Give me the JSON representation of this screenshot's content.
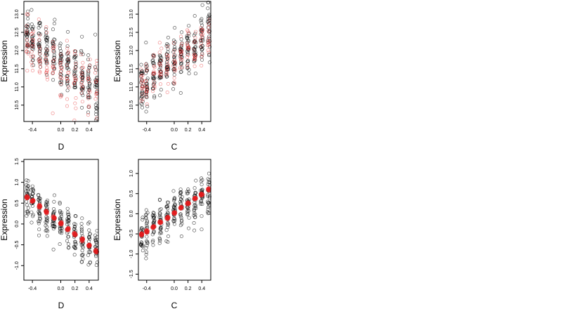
{
  "chart_data": [
    {
      "type": "scatter",
      "xlabel": "D",
      "ylabel": "Expression",
      "xlim": [
        -0.52,
        0.53
      ],
      "ylim": [
        10.05,
        13.35
      ],
      "x_ticks": [
        -0.4,
        0.0,
        0.2,
        0.4
      ],
      "x_tick_labels": [
        "-0.4",
        "0.0",
        "0.2",
        "0.4"
      ],
      "y_ticks": [
        10.5,
        11.0,
        11.5,
        12.0,
        12.5,
        13.0
      ],
      "y_tick_labels": [
        "10.5",
        "11.0",
        "11.5",
        "12.0",
        "12.5",
        "13.0"
      ],
      "x_levels": [
        -0.47,
        -0.4,
        -0.3,
        -0.2,
        -0.1,
        0.0,
        0.1,
        0.2,
        0.3,
        0.4,
        0.5
      ],
      "series": [
        {
          "color": "#000000",
          "style": "open-circle",
          "center": [
            12.55,
            12.35,
            12.2,
            12.0,
            11.85,
            11.7,
            11.55,
            11.4,
            11.25,
            11.1,
            11.0
          ],
          "spread": 0.9,
          "per_level": 26
        },
        {
          "color": "#e41a1c",
          "style": "open-circle",
          "center": [
            12.3,
            12.2,
            12.0,
            11.8,
            11.7,
            11.55,
            11.4,
            11.3,
            11.15,
            11.0,
            10.9
          ],
          "spread": 1.0,
          "per_level": 14
        }
      ],
      "grid": false
    },
    {
      "type": "scatter",
      "xlabel": "C",
      "ylabel": "Expression",
      "xlim": [
        -0.52,
        0.53
      ],
      "ylim": [
        10.05,
        13.35
      ],
      "x_ticks": [
        -0.4,
        0.0,
        0.2,
        0.4
      ],
      "x_tick_labels": [
        "-0.4",
        "0.0",
        "0.2",
        "0.4"
      ],
      "y_ticks": [
        10.5,
        11.0,
        11.5,
        12.0,
        12.5,
        13.0
      ],
      "y_tick_labels": [
        "10.5",
        "11.0",
        "11.5",
        "12.0",
        "12.5",
        "13.0"
      ],
      "x_levels": [
        -0.47,
        -0.4,
        -0.3,
        -0.2,
        -0.1,
        0.0,
        0.1,
        0.2,
        0.3,
        0.4,
        0.5
      ],
      "series": [
        {
          "color": "#000000",
          "style": "open-circle",
          "center": [
            11.0,
            11.05,
            11.3,
            11.45,
            11.6,
            11.75,
            11.85,
            12.0,
            12.1,
            12.3,
            12.5
          ],
          "spread": 0.85,
          "per_level": 26
        },
        {
          "color": "#e41a1c",
          "style": "open-circle",
          "center": [
            10.9,
            10.95,
            11.2,
            11.4,
            11.55,
            11.7,
            11.85,
            12.0,
            12.1,
            12.3,
            12.45
          ],
          "spread": 0.8,
          "per_level": 14
        }
      ],
      "grid": false
    },
    {
      "type": "scatter",
      "xlabel": "D",
      "ylabel": "Expression",
      "xlim": [
        -0.52,
        0.53
      ],
      "ylim": [
        -1.35,
        1.55
      ],
      "x_ticks": [
        -0.4,
        0.0,
        0.2,
        0.4
      ],
      "x_tick_labels": [
        "-0.4",
        "0.0",
        "0.2",
        "0.4"
      ],
      "y_ticks": [
        -1.0,
        -0.5,
        0.0,
        0.5,
        1.0,
        1.5
      ],
      "y_tick_labels": [
        "-1.0",
        "-0.5",
        "0.0",
        "0.5",
        "1.0",
        "1.5"
      ],
      "x_levels": [
        -0.47,
        -0.4,
        -0.3,
        -0.2,
        -0.1,
        0.0,
        0.1,
        0.2,
        0.3,
        0.4,
        0.5
      ],
      "series": [
        {
          "color": "#000000",
          "style": "open-circle",
          "center": [
            0.6,
            0.5,
            0.35,
            0.2,
            0.1,
            0.0,
            -0.1,
            -0.25,
            -0.35,
            -0.5,
            -0.6
          ],
          "spread": 0.6,
          "per_level": 26
        },
        {
          "color": "#e41a1c",
          "style": "filled-circle",
          "line": {
            "x": [
              -0.47,
              0.5
            ],
            "y": [
              0.65,
              -0.65
            ]
          },
          "per_level": 4
        }
      ],
      "grid": false
    },
    {
      "type": "scatter",
      "xlabel": "C",
      "ylabel": "Expression",
      "xlim": [
        -0.52,
        0.53
      ],
      "ylim": [
        -1.65,
        1.35
      ],
      "x_ticks": [
        -0.4,
        0.0,
        0.2,
        0.4
      ],
      "x_tick_labels": [
        "-0.4",
        "0.0",
        "0.2",
        "0.4"
      ],
      "y_ticks": [
        -1.5,
        -1.0,
        -0.5,
        0.0,
        0.5,
        1.0
      ],
      "y_tick_labels": [
        "-1.5",
        "-1.0",
        "-0.5",
        "0.0",
        "0.5",
        "1.0"
      ],
      "x_levels": [
        -0.47,
        -0.4,
        -0.3,
        -0.2,
        -0.1,
        0.0,
        0.1,
        0.2,
        0.3,
        0.4,
        0.5
      ],
      "series": [
        {
          "color": "#000000",
          "style": "open-circle",
          "center": [
            -0.5,
            -0.45,
            -0.3,
            -0.2,
            -0.1,
            0.0,
            0.1,
            0.2,
            0.3,
            0.45,
            0.55
          ],
          "spread": 0.6,
          "per_level": 26
        },
        {
          "color": "#e41a1c",
          "style": "filled-circle",
          "line": {
            "x": [
              -0.47,
              0.5
            ],
            "y": [
              -0.52,
              0.6
            ]
          },
          "per_level": 4
        }
      ],
      "grid": false
    }
  ]
}
